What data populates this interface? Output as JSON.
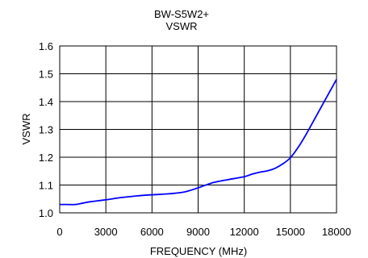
{
  "chart_data": {
    "type": "line",
    "title": "BW-S5W2+",
    "subtitle": "VSWR",
    "xlabel": "FREQUENCY (MHz)",
    "ylabel": "VSWR",
    "xlim": [
      0,
      18000
    ],
    "ylim": [
      1.0,
      1.6
    ],
    "xticks": [
      0,
      3000,
      6000,
      9000,
      12000,
      15000,
      18000
    ],
    "xtick_labels": [
      "0",
      "3000",
      "6000",
      "9000",
      "12000",
      "15000",
      "18000"
    ],
    "yticks": [
      1.0,
      1.1,
      1.2,
      1.3,
      1.4,
      1.5,
      1.6
    ],
    "ytick_labels": [
      "1.0",
      "1.1",
      "1.2",
      "1.3",
      "1.4",
      "1.5",
      "1.6"
    ],
    "grid": true,
    "line_color": "#0000ff",
    "series": [
      {
        "x": [
          0,
          500,
          1000,
          1500,
          2000,
          3000,
          4000,
          5000,
          6000,
          7000,
          8000,
          8500,
          9000,
          9500,
          10000,
          10500,
          11000,
          12000,
          12500,
          13000,
          13500,
          14000,
          14500,
          15000,
          15500,
          16000,
          16500,
          17000,
          17500,
          18000
        ],
        "values": [
          1.03,
          1.03,
          1.03,
          1.035,
          1.04,
          1.047,
          1.055,
          1.061,
          1.065,
          1.068,
          1.074,
          1.081,
          1.09,
          1.1,
          1.109,
          1.115,
          1.12,
          1.13,
          1.139,
          1.146,
          1.151,
          1.16,
          1.176,
          1.198,
          1.235,
          1.28,
          1.33,
          1.38,
          1.43,
          1.48
        ]
      }
    ]
  }
}
